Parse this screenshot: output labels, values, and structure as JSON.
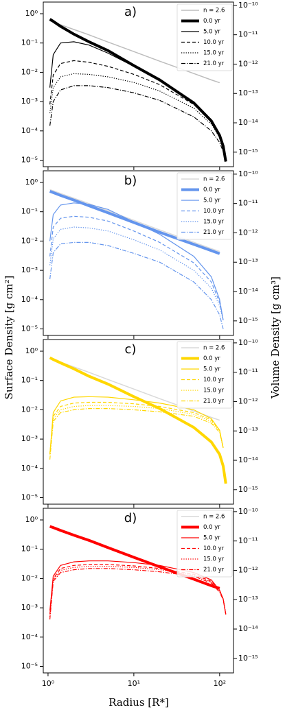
{
  "labels": {
    "ylabel": "Surface Density [g cm²]",
    "y2label": "Volume Density [g cm³]",
    "xlabel": "Radius [R*]"
  },
  "chart_data": [
    {
      "type": "line",
      "panel_label": "a)",
      "xscale": "log",
      "yscale": "log",
      "x": [
        1.05,
        1.15,
        1.4,
        2,
        3,
        5,
        10,
        20,
        50,
        80,
        100,
        110,
        118
      ],
      "ylim": [
        6e-06,
        2.5
      ],
      "yticks": [
        {
          "value": 1,
          "label": "10⁰"
        },
        {
          "value": 0.1,
          "label": "10⁻¹"
        },
        {
          "value": 0.01,
          "label": "10⁻²"
        },
        {
          "value": 0.001,
          "label": "10⁻³"
        },
        {
          "value": 0.0001,
          "label": "10⁻⁴"
        },
        {
          "value": 1e-05,
          "label": "10⁻⁵"
        }
      ],
      "y2lim": [
        3.2e-16,
        1.3e-10
      ],
      "y2ticks": [
        {
          "value": 1e-10,
          "label": "10⁻¹⁰"
        },
        {
          "value": 1e-11,
          "label": "10⁻¹¹"
        },
        {
          "value": 1e-12,
          "label": "10⁻¹²"
        },
        {
          "value": 1e-13,
          "label": "10⁻¹³"
        },
        {
          "value": 1e-14,
          "label": "10⁻¹⁴"
        },
        {
          "value": 1e-15,
          "label": "10⁻¹⁵"
        }
      ],
      "series": [
        {
          "name": "n = 2.6",
          "color": "#bdbdbd",
          "linestyle": "solid",
          "linewidth": 1.5,
          "values": [
            0.57,
            0.52,
            0.42,
            0.29,
            0.19,
            0.108,
            0.051,
            0.024,
            0.0091,
            0.0055,
            0.0044,
            null,
            null
          ]
        },
        {
          "name": "0.0 yr",
          "color": "#000000",
          "linestyle": "solid",
          "linewidth": 4,
          "values": [
            0.65,
            0.55,
            0.37,
            0.2,
            0.11,
            0.055,
            0.017,
            0.0055,
            0.0009,
            0.00022,
            7e-05,
            3e-05,
            9e-06
          ]
        },
        {
          "name": "5.0 yr",
          "color": "#000000",
          "linestyle": "solid",
          "linewidth": 1.2,
          "values": [
            0.003,
            0.04,
            0.1,
            0.11,
            0.085,
            0.045,
            0.016,
            0.0054,
            0.0009,
            0.00022,
            7e-05,
            3e-05,
            9e-06
          ]
        },
        {
          "name": "10.0 yr",
          "color": "#000000",
          "linestyle": "dashed",
          "linewidth": 1.2,
          "values": [
            0.0008,
            0.008,
            0.02,
            0.025,
            0.022,
            0.016,
            0.0085,
            0.0038,
            0.0008,
            0.0002,
            7e-05,
            3e-05,
            9e-06
          ]
        },
        {
          "name": "15.0 yr",
          "color": "#000000",
          "linestyle": "dotted",
          "linewidth": 1.2,
          "values": [
            0.0004,
            0.003,
            0.007,
            0.009,
            0.0085,
            0.007,
            0.0045,
            0.0023,
            0.0006,
            0.00017,
            6e-05,
            3e-05,
            9e-06
          ]
        },
        {
          "name": "21.0 yr",
          "color": "#000000",
          "linestyle": "dashdot",
          "linewidth": 1.2,
          "values": [
            0.00015,
            0.001,
            0.0025,
            0.0035,
            0.0035,
            0.003,
            0.002,
            0.0011,
            0.0003,
            0.0001,
            4e-05,
            2e-05,
            9e-06
          ]
        }
      ]
    },
    {
      "type": "line",
      "panel_label": "b)",
      "xscale": "log",
      "yscale": "log",
      "x": [
        1.05,
        1.15,
        1.4,
        2,
        3,
        5,
        10,
        20,
        50,
        80,
        100,
        110,
        118
      ],
      "ylim": [
        6e-06,
        2.5
      ],
      "yticks": [
        {
          "value": 1,
          "label": "10⁰"
        },
        {
          "value": 0.1,
          "label": "10⁻¹"
        },
        {
          "value": 0.01,
          "label": "10⁻²"
        },
        {
          "value": 0.001,
          "label": "10⁻³"
        },
        {
          "value": 0.0001,
          "label": "10⁻⁴"
        },
        {
          "value": 1e-05,
          "label": "10⁻⁵"
        }
      ],
      "y2lim": [
        3.2e-16,
        1.3e-10
      ],
      "y2ticks": [
        {
          "value": 1e-10,
          "label": "10⁻¹⁰"
        },
        {
          "value": 1e-11,
          "label": "10⁻¹¹"
        },
        {
          "value": 1e-12,
          "label": "10⁻¹²"
        },
        {
          "value": 1e-13,
          "label": "10⁻¹³"
        },
        {
          "value": 1e-14,
          "label": "10⁻¹⁴"
        },
        {
          "value": 1e-15,
          "label": "10⁻¹⁵"
        }
      ],
      "series": [
        {
          "name": "n = 2.6",
          "color": "#d9d9d9",
          "linestyle": "solid",
          "linewidth": 1.5,
          "values": [
            0.57,
            0.52,
            0.42,
            0.29,
            0.19,
            0.108,
            0.051,
            0.024,
            0.0091,
            0.0055,
            0.0044,
            null,
            null
          ]
        },
        {
          "name": "0.0 yr",
          "color": "#6495ed",
          "linestyle": "solid",
          "linewidth": 4,
          "values": [
            0.5,
            0.45,
            0.36,
            0.25,
            0.16,
            0.092,
            0.043,
            0.02,
            0.0077,
            0.0047,
            0.0037,
            null,
            null
          ]
        },
        {
          "name": "5.0 yr",
          "color": "#6495ed",
          "linestyle": "solid",
          "linewidth": 1.2,
          "values": [
            0.01,
            0.08,
            0.17,
            0.2,
            0.18,
            0.12,
            0.045,
            0.017,
            0.003,
            0.0006,
            0.0001,
            2e-05,
            null
          ]
        },
        {
          "name": "10.0 yr",
          "color": "#6495ed",
          "linestyle": "dashed",
          "linewidth": 1.2,
          "values": [
            0.003,
            0.03,
            0.06,
            0.07,
            0.065,
            0.048,
            0.022,
            0.009,
            0.0018,
            0.0004,
            8e-05,
            2e-05,
            null
          ]
        },
        {
          "name": "15.0 yr",
          "color": "#6495ed",
          "linestyle": "dotted",
          "linewidth": 1.2,
          "values": [
            0.0015,
            0.012,
            0.025,
            0.03,
            0.028,
            0.022,
            0.011,
            0.005,
            0.001,
            0.00025,
            6e-05,
            2e-05,
            null
          ]
        },
        {
          "name": "21.0 yr",
          "color": "#6495ed",
          "linestyle": "dashdot",
          "linewidth": 1.2,
          "values": [
            0.0005,
            0.004,
            0.008,
            0.009,
            0.009,
            0.007,
            0.0038,
            0.0019,
            0.0004,
            0.0001,
            3e-05,
            1e-05,
            null
          ]
        }
      ]
    },
    {
      "type": "line",
      "panel_label": "c)",
      "xscale": "log",
      "yscale": "log",
      "x": [
        1.05,
        1.15,
        1.4,
        2,
        3,
        5,
        10,
        20,
        50,
        80,
        100,
        110,
        118
      ],
      "ylim": [
        6e-06,
        2.5
      ],
      "yticks": [
        {
          "value": 1,
          "label": "10⁰"
        },
        {
          "value": 0.1,
          "label": "10⁻¹"
        },
        {
          "value": 0.01,
          "label": "10⁻²"
        },
        {
          "value": 0.001,
          "label": "10⁻³"
        },
        {
          "value": 0.0001,
          "label": "10⁻⁴"
        },
        {
          "value": 1e-05,
          "label": "10⁻⁵"
        }
      ],
      "y2lim": [
        3.2e-16,
        1.3e-10
      ],
      "y2ticks": [
        {
          "value": 1e-10,
          "label": "10⁻¹⁰"
        },
        {
          "value": 1e-11,
          "label": "10⁻¹¹"
        },
        {
          "value": 1e-12,
          "label": "10⁻¹²"
        },
        {
          "value": 1e-13,
          "label": "10⁻¹³"
        },
        {
          "value": 1e-14,
          "label": "10⁻¹⁴"
        },
        {
          "value": 1e-15,
          "label": "10⁻¹⁵"
        }
      ],
      "series": [
        {
          "name": "n = 2.6",
          "color": "#d9d9d9",
          "linestyle": "solid",
          "linewidth": 1.5,
          "values": [
            0.57,
            0.52,
            0.42,
            0.29,
            0.19,
            0.108,
            0.051,
            0.024,
            0.0091,
            0.0055,
            0.0044,
            null,
            null
          ]
        },
        {
          "name": "0.0 yr",
          "color": "#ffd700",
          "linestyle": "solid",
          "linewidth": 4,
          "values": [
            0.6,
            0.52,
            0.4,
            0.25,
            0.14,
            0.075,
            0.028,
            0.011,
            0.0025,
            0.0008,
            0.0003,
            0.00012,
            3e-05
          ]
        },
        {
          "name": "5.0 yr",
          "color": "#ffd700",
          "linestyle": "solid",
          "linewidth": 1.2,
          "values": [
            0.0003,
            0.008,
            0.02,
            0.027,
            0.028,
            0.027,
            0.022,
            0.017,
            0.01,
            0.005,
            0.002,
            0.0005,
            null
          ]
        },
        {
          "name": "10.0 yr",
          "color": "#ffd700",
          "linestyle": "dashed",
          "linewidth": 1.2,
          "values": [
            0.0003,
            0.006,
            0.013,
            0.017,
            0.018,
            0.018,
            0.016,
            0.013,
            0.008,
            0.0045,
            0.002,
            0.0005,
            null
          ]
        },
        {
          "name": "15.0 yr",
          "color": "#ffd700",
          "linestyle": "dotted",
          "linewidth": 1.2,
          "values": [
            0.0003,
            0.005,
            0.01,
            0.013,
            0.014,
            0.014,
            0.013,
            0.011,
            0.007,
            0.004,
            0.0019,
            0.0005,
            null
          ]
        },
        {
          "name": "21.0 yr",
          "color": "#ffd700",
          "linestyle": "dashdot",
          "linewidth": 1.2,
          "values": [
            0.0002,
            0.004,
            0.008,
            0.01,
            0.011,
            0.011,
            0.01,
            0.0085,
            0.006,
            0.0035,
            0.0017,
            0.0005,
            null
          ]
        }
      ]
    },
    {
      "type": "line",
      "panel_label": "d)",
      "xscale": "log",
      "yscale": "log",
      "x": [
        1.05,
        1.15,
        1.4,
        2,
        3,
        5,
        10,
        20,
        50,
        80,
        100,
        110,
        118
      ],
      "xlim": [
        0.88,
        145
      ],
      "xticks": [
        {
          "value": 1,
          "label": "10⁰"
        },
        {
          "value": 10,
          "label": "10¹"
        },
        {
          "value": 100,
          "label": "10²"
        }
      ],
      "ylim": [
        6e-06,
        2.5
      ],
      "yticks": [
        {
          "value": 1,
          "label": "10⁰"
        },
        {
          "value": 0.1,
          "label": "10⁻¹"
        },
        {
          "value": 0.01,
          "label": "10⁻²"
        },
        {
          "value": 0.001,
          "label": "10⁻³"
        },
        {
          "value": 0.0001,
          "label": "10⁻⁴"
        },
        {
          "value": 1e-05,
          "label": "10⁻⁵"
        }
      ],
      "y2lim": [
        3.2e-16,
        1.3e-10
      ],
      "y2ticks": [
        {
          "value": 1e-10,
          "label": "10⁻¹⁰"
        },
        {
          "value": 1e-11,
          "label": "10⁻¹¹"
        },
        {
          "value": 1e-12,
          "label": "10⁻¹²"
        },
        {
          "value": 1e-13,
          "label": "10⁻¹³"
        },
        {
          "value": 1e-14,
          "label": "10⁻¹⁴"
        },
        {
          "value": 1e-15,
          "label": "10⁻¹⁵"
        }
      ],
      "series": [
        {
          "name": "n = 2.6",
          "color": "#d9d9d9",
          "linestyle": "solid",
          "linewidth": 1.5,
          "values": [
            0.57,
            0.52,
            0.42,
            0.29,
            0.19,
            0.108,
            0.051,
            0.024,
            0.0091,
            0.0055,
            0.0044,
            null,
            null
          ]
        },
        {
          "name": "0.0 yr",
          "color": "#ff0000",
          "linestyle": "solid",
          "linewidth": 4,
          "values": [
            0.6,
            0.55,
            0.44,
            0.3,
            0.2,
            0.113,
            0.053,
            0.025,
            0.0095,
            0.0057,
            0.0046,
            null,
            null
          ]
        },
        {
          "name": "5.0 yr",
          "color": "#ff0000",
          "linestyle": "solid",
          "linewidth": 1.2,
          "values": [
            0.0008,
            0.012,
            0.028,
            0.037,
            0.04,
            0.04,
            0.035,
            0.028,
            0.016,
            0.009,
            0.004,
            0.002,
            0.0006
          ]
        },
        {
          "name": "10.0 yr",
          "color": "#ff0000",
          "linestyle": "dashed",
          "linewidth": 1.2,
          "values": [
            0.0006,
            0.01,
            0.022,
            0.028,
            0.03,
            0.03,
            0.027,
            0.022,
            0.014,
            0.008,
            0.0038,
            0.002,
            0.0006
          ]
        },
        {
          "name": "15.0 yr",
          "color": "#ff0000",
          "linestyle": "dotted",
          "linewidth": 1.2,
          "values": [
            0.0005,
            0.009,
            0.019,
            0.024,
            0.026,
            0.026,
            0.024,
            0.02,
            0.013,
            0.0075,
            0.0036,
            0.002,
            0.0006
          ]
        },
        {
          "name": "21.0 yr",
          "color": "#ff0000",
          "linestyle": "dashdot",
          "linewidth": 1.2,
          "values": [
            0.0004,
            0.008,
            0.016,
            0.02,
            0.022,
            0.022,
            0.02,
            0.017,
            0.012,
            0.007,
            0.0034,
            0.0019,
            0.0006
          ]
        }
      ]
    }
  ]
}
